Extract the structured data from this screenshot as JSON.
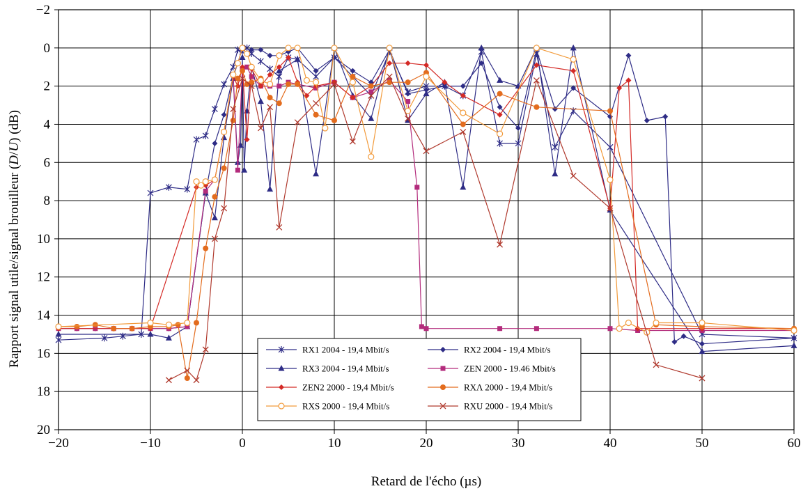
{
  "chart_data": {
    "type": "line",
    "title": "",
    "xlabel": "Retard de l'écho (µs)",
    "ylabel_parts": [
      "Rapport signal utile/signal brouilleur (",
      "D",
      "/",
      "U",
      ") (dB)"
    ],
    "xlim": [
      -20,
      60
    ],
    "ylim": [
      -2,
      20
    ],
    "y_inverted": true,
    "x_ticks": [
      -20,
      -10,
      0,
      10,
      20,
      30,
      40,
      50,
      60
    ],
    "x_tick_labels": [
      "−20",
      "−10",
      "0",
      "10",
      "20",
      "30",
      "40",
      "50",
      "60"
    ],
    "y_ticks": [
      -2,
      0,
      2,
      4,
      6,
      8,
      10,
      12,
      14,
      16,
      18,
      20
    ],
    "y_tick_labels": [
      "−2",
      "0",
      "2",
      "4",
      "6",
      "8",
      "10",
      "12",
      "14",
      "16",
      "18",
      "20"
    ],
    "grid": true,
    "legend_position": "bottom-center",
    "series": [
      {
        "name": "RX1 2004 - 19,4 Mbit/s",
        "color": "#2e2c86",
        "marker": "asterisk",
        "x": [
          -20,
          -15,
          -13,
          -11,
          -10,
          -8,
          -6,
          -5,
          -4,
          -3,
          -2,
          -1,
          -0.5,
          0,
          0.5,
          1,
          2,
          3,
          4,
          5,
          6,
          8,
          10,
          12,
          14,
          16,
          18,
          20,
          22,
          24,
          26,
          28,
          30,
          32,
          34,
          36,
          40,
          50,
          60
        ],
        "y": [
          15.3,
          15.2,
          15.1,
          15.0,
          7.6,
          7.3,
          7.4,
          4.8,
          4.6,
          3.2,
          1.9,
          1.0,
          0.1,
          0.2,
          0,
          0.3,
          0.7,
          1.1,
          1.5,
          0.5,
          0.6,
          1.5,
          0.5,
          1.5,
          2.5,
          0.2,
          2.3,
          2.0,
          2.0,
          2.5,
          0.2,
          5.0,
          5.0,
          0.3,
          5.2,
          3.3,
          5.2,
          15.0,
          15.2
        ]
      },
      {
        "name": "RX2 2004 - 19,4 Mbit/s",
        "color": "#2e2c86",
        "marker": "diamond",
        "x": [
          -20,
          -18,
          -16,
          -14,
          -12,
          -10,
          -8,
          -6,
          -4,
          -3,
          -2,
          -1,
          -0.5,
          0,
          0.5,
          1,
          2,
          3,
          4,
          5,
          6,
          8,
          10,
          12,
          14,
          16,
          18,
          20,
          22,
          24,
          26,
          28,
          30,
          32,
          34,
          36,
          40,
          42,
          44,
          46,
          47,
          48,
          50,
          60
        ],
        "y": [
          14.7,
          14.7,
          14.7,
          14.7,
          14.7,
          14.7,
          14.7,
          14.6,
          7.6,
          5.0,
          3.5,
          1.5,
          0.8,
          0,
          0.3,
          0.1,
          0.1,
          0.4,
          0.4,
          0.2,
          0,
          1.2,
          0.5,
          1.2,
          1.8,
          0.1,
          2.4,
          2.2,
          2.0,
          2.0,
          0.8,
          3.1,
          4.2,
          0.1,
          3.2,
          2.1,
          3.6,
          0.4,
          3.8,
          3.6,
          15.4,
          15.1,
          15.5,
          15.2
        ]
      },
      {
        "name": "RX3 2004 - 19,4 Mbit/s",
        "color": "#2e2c86",
        "marker": "triangle",
        "x": [
          -20,
          -10,
          -8,
          -6,
          -4,
          -3,
          -2,
          -1,
          -0.5,
          -0.2,
          0,
          0.2,
          0.5,
          1,
          2,
          3,
          4,
          6,
          8,
          10,
          12,
          14,
          16,
          18,
          20,
          22,
          24,
          26,
          28,
          30,
          32,
          34,
          36,
          40,
          50,
          60
        ],
        "y": [
          15.0,
          15.0,
          15.2,
          14.6,
          7.6,
          8.9,
          4.7,
          1.6,
          6.0,
          5.1,
          0.5,
          6.4,
          3.3,
          1.0,
          2.8,
          7.4,
          1.2,
          0.6,
          6.6,
          0,
          2.5,
          3.7,
          0,
          3.8,
          2.4,
          1.8,
          7.3,
          0,
          1.7,
          2.0,
          0,
          6.6,
          0,
          8.5,
          15.9,
          15.6
        ]
      },
      {
        "name": "ZEN 2000 - 19.46 Mbit/s",
        "color": "#b32b7c",
        "marker": "square",
        "x": [
          -20,
          -18,
          -16,
          -14,
          -12,
          -10,
          -8,
          -6,
          -4,
          -3,
          -2,
          -1,
          -0.5,
          0,
          0.5,
          1,
          2,
          3,
          4,
          5,
          6,
          8,
          10,
          12,
          14,
          16,
          18,
          19,
          19.5,
          20,
          28,
          32,
          40,
          43,
          50,
          60
        ],
        "y": [
          14.7,
          14.7,
          14.7,
          14.7,
          14.7,
          14.7,
          14.7,
          14.6,
          7.5,
          6.9,
          4.4,
          1.4,
          6.4,
          1.1,
          1.0,
          1.5,
          2.0,
          2.0,
          2.0,
          1.8,
          1.9,
          2.1,
          1.8,
          2.6,
          2.3,
          1.7,
          2.8,
          7.3,
          14.6,
          14.7,
          14.7,
          14.7,
          14.7,
          14.8,
          14.8,
          14.8
        ]
      },
      {
        "name": "ZEN2 2000 - 19,4 Mbit/s",
        "color": "#d42a26",
        "marker": "diamond",
        "x": [
          -20,
          -10,
          -5,
          -4,
          -3,
          -2,
          -1,
          -0.5,
          0,
          0.5,
          1,
          2,
          3,
          4,
          5,
          6,
          7,
          8,
          10,
          12,
          14,
          16,
          18,
          20,
          22,
          24,
          28,
          32,
          36,
          40,
          41,
          42,
          43,
          50,
          60
        ],
        "y": [
          14.7,
          14.7,
          7.3,
          7.2,
          6.9,
          4.4,
          1.5,
          2.0,
          1.0,
          4.8,
          1.1,
          2.0,
          1.4,
          1.0,
          0.5,
          1.8,
          2.5,
          2.0,
          1.8,
          2.6,
          2.0,
          0.8,
          0.8,
          0.9,
          1.8,
          2.5,
          3.5,
          0.9,
          1.2,
          8.4,
          2.1,
          1.7,
          14.7,
          14.7,
          14.7
        ]
      },
      {
        "name": "RXΛ 2000 - 19,4 Mbit/s",
        "color": "#e36c1e",
        "marker": "circle",
        "x": [
          -20,
          -18,
          -16,
          -14,
          -12,
          -10,
          -8,
          -7,
          -6,
          -5,
          -4,
          -3,
          -2,
          -1,
          -0.5,
          0,
          0.5,
          1,
          2,
          3,
          4,
          5,
          6,
          8,
          10,
          12,
          14,
          16,
          18,
          20,
          24,
          28,
          32,
          40,
          45,
          50,
          60
        ],
        "y": [
          14.6,
          14.6,
          14.5,
          14.7,
          14.7,
          14.6,
          14.6,
          14.5,
          17.3,
          14.4,
          10.5,
          7.8,
          6.3,
          3.8,
          1.6,
          1.2,
          1.9,
          1.8,
          1.6,
          2.6,
          2.9,
          1.9,
          1.9,
          3.5,
          3.8,
          1.5,
          2.0,
          1.8,
          1.8,
          1.3,
          4.0,
          2.4,
          3.1,
          3.3,
          14.5,
          14.6,
          14.7
        ]
      },
      {
        "name": "RXS 2000 - 19,4 Mbit/s",
        "color": "#f29a3a",
        "marker": "circle-open",
        "x": [
          -20,
          -10,
          -8,
          -6,
          -5,
          -4.5,
          -4,
          -3,
          -2,
          -1,
          -0.5,
          0,
          0.5,
          1,
          2,
          3,
          4,
          5,
          6,
          7,
          8,
          9,
          10,
          12,
          14,
          16,
          18,
          20,
          24,
          28,
          32,
          36,
          40,
          41,
          42,
          44,
          45,
          50,
          60
        ],
        "y": [
          14.6,
          14.4,
          14.5,
          14.4,
          7.0,
          7.2,
          7.0,
          6.9,
          4.4,
          1.4,
          0.8,
          0,
          0.3,
          1.0,
          1.7,
          1.9,
          0.4,
          0,
          0,
          1.7,
          1.8,
          4.2,
          0,
          1.8,
          5.7,
          0,
          3.3,
          1.5,
          3.4,
          4.5,
          0,
          0.6,
          6.9,
          14.7,
          14.4,
          14.9,
          14.4,
          14.4,
          14.8
        ]
      },
      {
        "name": "RXU 2000 - 19,4 Mbit/s",
        "color": "#b03a2e",
        "marker": "x",
        "x": [
          -8,
          -6,
          -5,
          -4,
          -3,
          -2,
          -1,
          0,
          1,
          2,
          3,
          4,
          6,
          8,
          10,
          12,
          14,
          16,
          18,
          20,
          24,
          28,
          32,
          36,
          40,
          45,
          50
        ],
        "y": [
          17.4,
          16.9,
          17.4,
          15.8,
          10.0,
          8.4,
          3.2,
          1.6,
          2.0,
          4.2,
          3.1,
          9.4,
          3.9,
          2.9,
          1.9,
          4.9,
          2.5,
          1.5,
          3.7,
          5.4,
          4.4,
          10.3,
          1.7,
          6.7,
          8.4,
          16.6,
          17.3
        ]
      }
    ]
  }
}
